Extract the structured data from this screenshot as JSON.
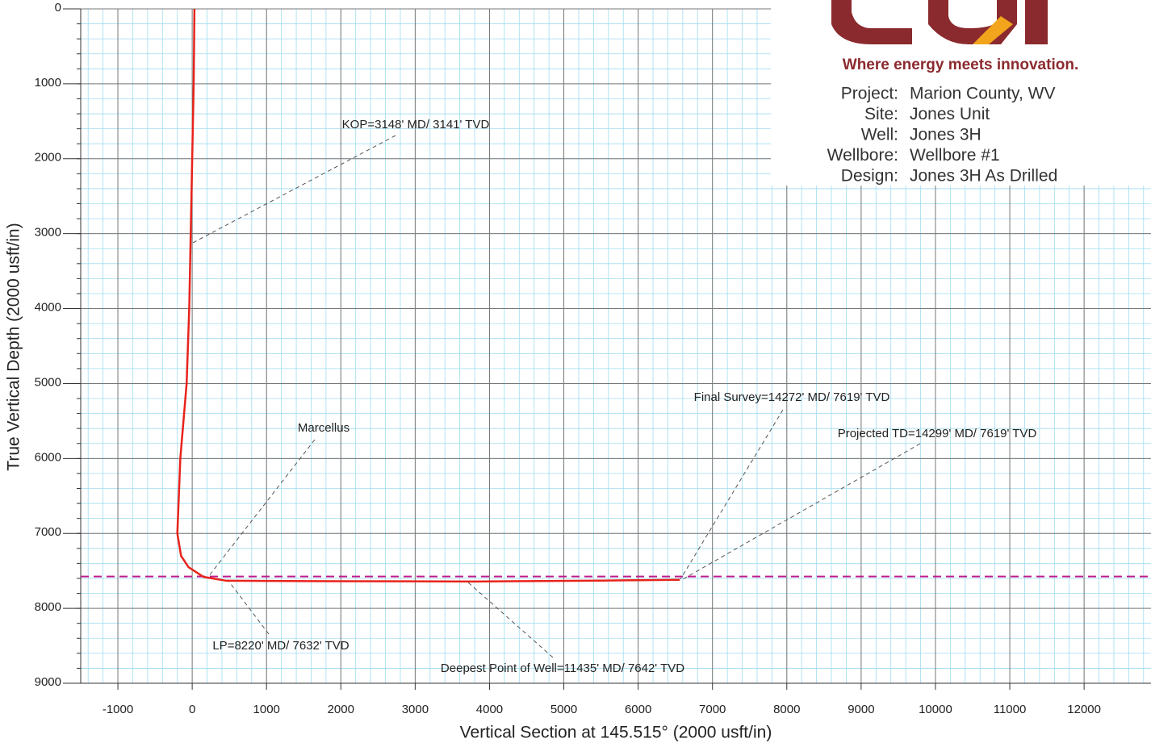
{
  "chart_data": {
    "type": "line",
    "xlabel": "Vertical Section at 145.515° (2000 usft/in)",
    "ylabel": "True Vertical Depth (2000 usft/in)",
    "xlim": [
      -1500,
      12900
    ],
    "ylim": [
      0,
      9000
    ],
    "y_inverted": true,
    "xticks": [
      -1000,
      0,
      1000,
      2000,
      3000,
      4000,
      5000,
      6000,
      7000,
      8000,
      9000,
      10000,
      11000,
      12000
    ],
    "yticks": [
      0,
      1000,
      2000,
      3000,
      4000,
      5000,
      6000,
      7000,
      8000,
      9000
    ],
    "grid": true,
    "minor_grid": true,
    "series": [
      {
        "name": "Jones 3H As Drilled",
        "color": "#e8231b",
        "x": [
          30,
          20,
          0,
          -20,
          -40,
          -75,
          -160,
          -200,
          -150,
          -50,
          150,
          460,
          2000,
          3800,
          5500,
          6530,
          6560
        ],
        "values": [
          0,
          1000,
          2000,
          3000,
          4000,
          5000,
          6000,
          7000,
          7300,
          7450,
          7580,
          7632,
          7638,
          7642,
          7630,
          7619,
          7619
        ]
      }
    ],
    "reference_lines": [
      {
        "name": "Marcellus",
        "value": 7575,
        "color": "#c2188b"
      }
    ],
    "annotations": [
      {
        "text": "KOP=3148' MD/ 3141' TVD"
      },
      {
        "text": "Marcellus"
      },
      {
        "text": "LP=8220' MD/ 7632' TVD"
      },
      {
        "text": "Deepest Point of Well=11435' MD/ 7642' TVD"
      },
      {
        "text": "Final Survey=14272' MD/ 7619' TVD"
      },
      {
        "text": "Projected TD=14299' MD/ 7619' TVD"
      }
    ]
  },
  "header": {
    "tagline": "Where energy meets innovation.",
    "info": [
      {
        "label": "Project:",
        "value": "Marion County, WV"
      },
      {
        "label": "Site:",
        "value": "Jones Unit"
      },
      {
        "label": "Well:",
        "value": "Jones 3H"
      },
      {
        "label": "Wellbore:",
        "value": "Wellbore #1"
      },
      {
        "label": "Design:",
        "value": "Jones 3H As Drilled"
      }
    ]
  }
}
